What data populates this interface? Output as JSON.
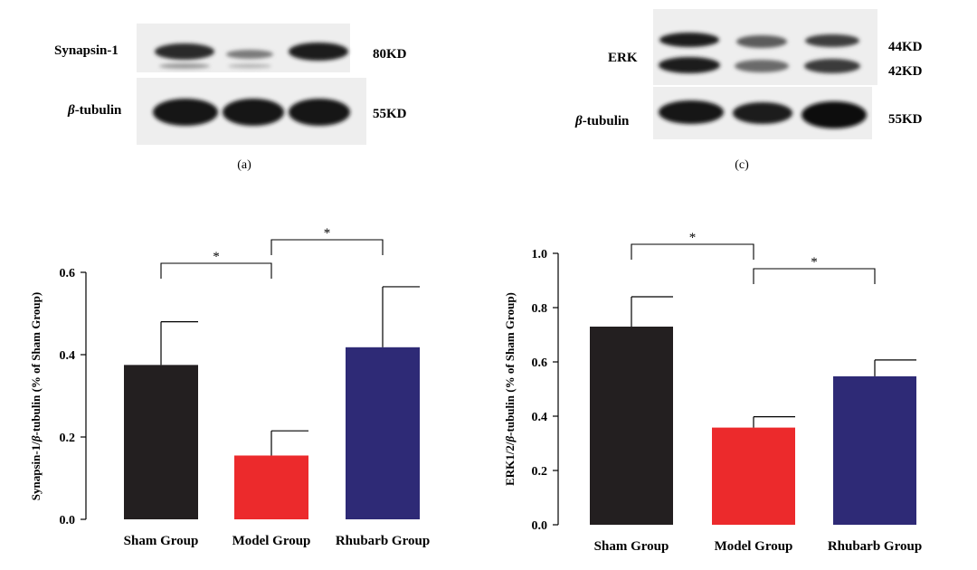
{
  "panel_a": {
    "caption": "(a)",
    "rows": [
      {
        "label": "Synapsin-1",
        "label_italic_prefix": "",
        "size": "80KD"
      },
      {
        "label": "-tubulin",
        "label_italic_prefix": "β",
        "size": "55KD"
      }
    ]
  },
  "panel_c": {
    "caption": "(c)",
    "rows": [
      {
        "label": "ERK",
        "label_italic_prefix": "",
        "sizes": [
          "44KD",
          "42KD"
        ]
      },
      {
        "label": "-tubulin",
        "label_italic_prefix": "β",
        "sizes": [
          "55KD"
        ]
      }
    ]
  },
  "chart_data": [
    {
      "type": "bar",
      "title": "",
      "categories": [
        "Sham Group",
        "Model Group",
        "Rhubarb Group"
      ],
      "values": [
        0.375,
        0.155,
        0.418
      ],
      "errors": [
        0.105,
        0.06,
        0.147
      ],
      "colors": [
        "#231f20",
        "#ec2a2c",
        "#2e2a76"
      ],
      "ylabel_parts": [
        "Synapsin-1/",
        "β",
        "-tubulin (% of Sham Group)"
      ],
      "xlabel": "",
      "ylim": [
        0,
        0.6
      ],
      "yticks": [
        "0.0",
        "0.2",
        "0.4",
        "0.6"
      ],
      "significance": [
        {
          "from": 0,
          "to": 1,
          "label": "*"
        },
        {
          "from": 1,
          "to": 2,
          "label": "*"
        }
      ]
    },
    {
      "type": "bar",
      "title": "",
      "categories": [
        "Sham Group",
        "Model Group",
        "Rhubarb Group"
      ],
      "values": [
        0.73,
        0.358,
        0.547
      ],
      "errors": [
        0.11,
        0.04,
        0.06
      ],
      "colors": [
        "#231f20",
        "#ec2a2c",
        "#2e2a76"
      ],
      "ylabel_parts": [
        "ERK1/2/",
        "β",
        "-tubulin (% of Sham Group)"
      ],
      "xlabel": "",
      "ylim": [
        0,
        1.0
      ],
      "yticks": [
        "0.0",
        "0.2",
        "0.4",
        "0.6",
        "0.8",
        "1.0"
      ],
      "significance": [
        {
          "from": 0,
          "to": 1,
          "label": "*"
        },
        {
          "from": 1,
          "to": 2,
          "label": "*"
        }
      ]
    }
  ]
}
